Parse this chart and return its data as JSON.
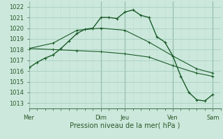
{
  "bg_color": "#cce8dc",
  "grid_color_major": "#a8cfc0",
  "grid_color_minor": "#b8ddd0",
  "line_color": "#1a5c28",
  "ylim": [
    1012.5,
    1022.5
  ],
  "yticks": [
    1013,
    1014,
    1015,
    1016,
    1017,
    1018,
    1019,
    1020,
    1021,
    1022
  ],
  "xlim": [
    0,
    48
  ],
  "day_labels": [
    "Mer",
    "Dim",
    "Jeu",
    "Ven",
    "Sam"
  ],
  "day_positions": [
    0,
    18,
    24,
    36,
    46
  ],
  "vline_positions": [
    0,
    18,
    24,
    36,
    46
  ],
  "series1_x": [
    0,
    2,
    4,
    6,
    8,
    10,
    12,
    14,
    16,
    18,
    20,
    22,
    24,
    26,
    28,
    30,
    32,
    34,
    36,
    38,
    40,
    42,
    44,
    46
  ],
  "series1_y": [
    1016.3,
    1016.8,
    1017.2,
    1017.5,
    1018.1,
    1018.8,
    1019.5,
    1019.9,
    1020.0,
    1021.0,
    1021.0,
    1020.9,
    1021.5,
    1021.7,
    1021.2,
    1021.0,
    1019.2,
    1018.7,
    1017.4,
    1015.5,
    1014.0,
    1013.3,
    1013.2,
    1013.8
  ],
  "series2_x": [
    0,
    6,
    12,
    18,
    24,
    30,
    36,
    42,
    46
  ],
  "series2_y": [
    1018.1,
    1018.0,
    1017.9,
    1017.8,
    1017.6,
    1017.3,
    1016.5,
    1015.8,
    1015.5
  ],
  "series3_x": [
    0,
    6,
    12,
    18,
    24,
    30,
    36,
    42,
    46
  ],
  "series3_y": [
    1018.1,
    1018.6,
    1019.8,
    1020.0,
    1019.8,
    1018.7,
    1017.4,
    1016.2,
    1015.8
  ],
  "xlabel": "Pression niveau de la mer( hPa )"
}
